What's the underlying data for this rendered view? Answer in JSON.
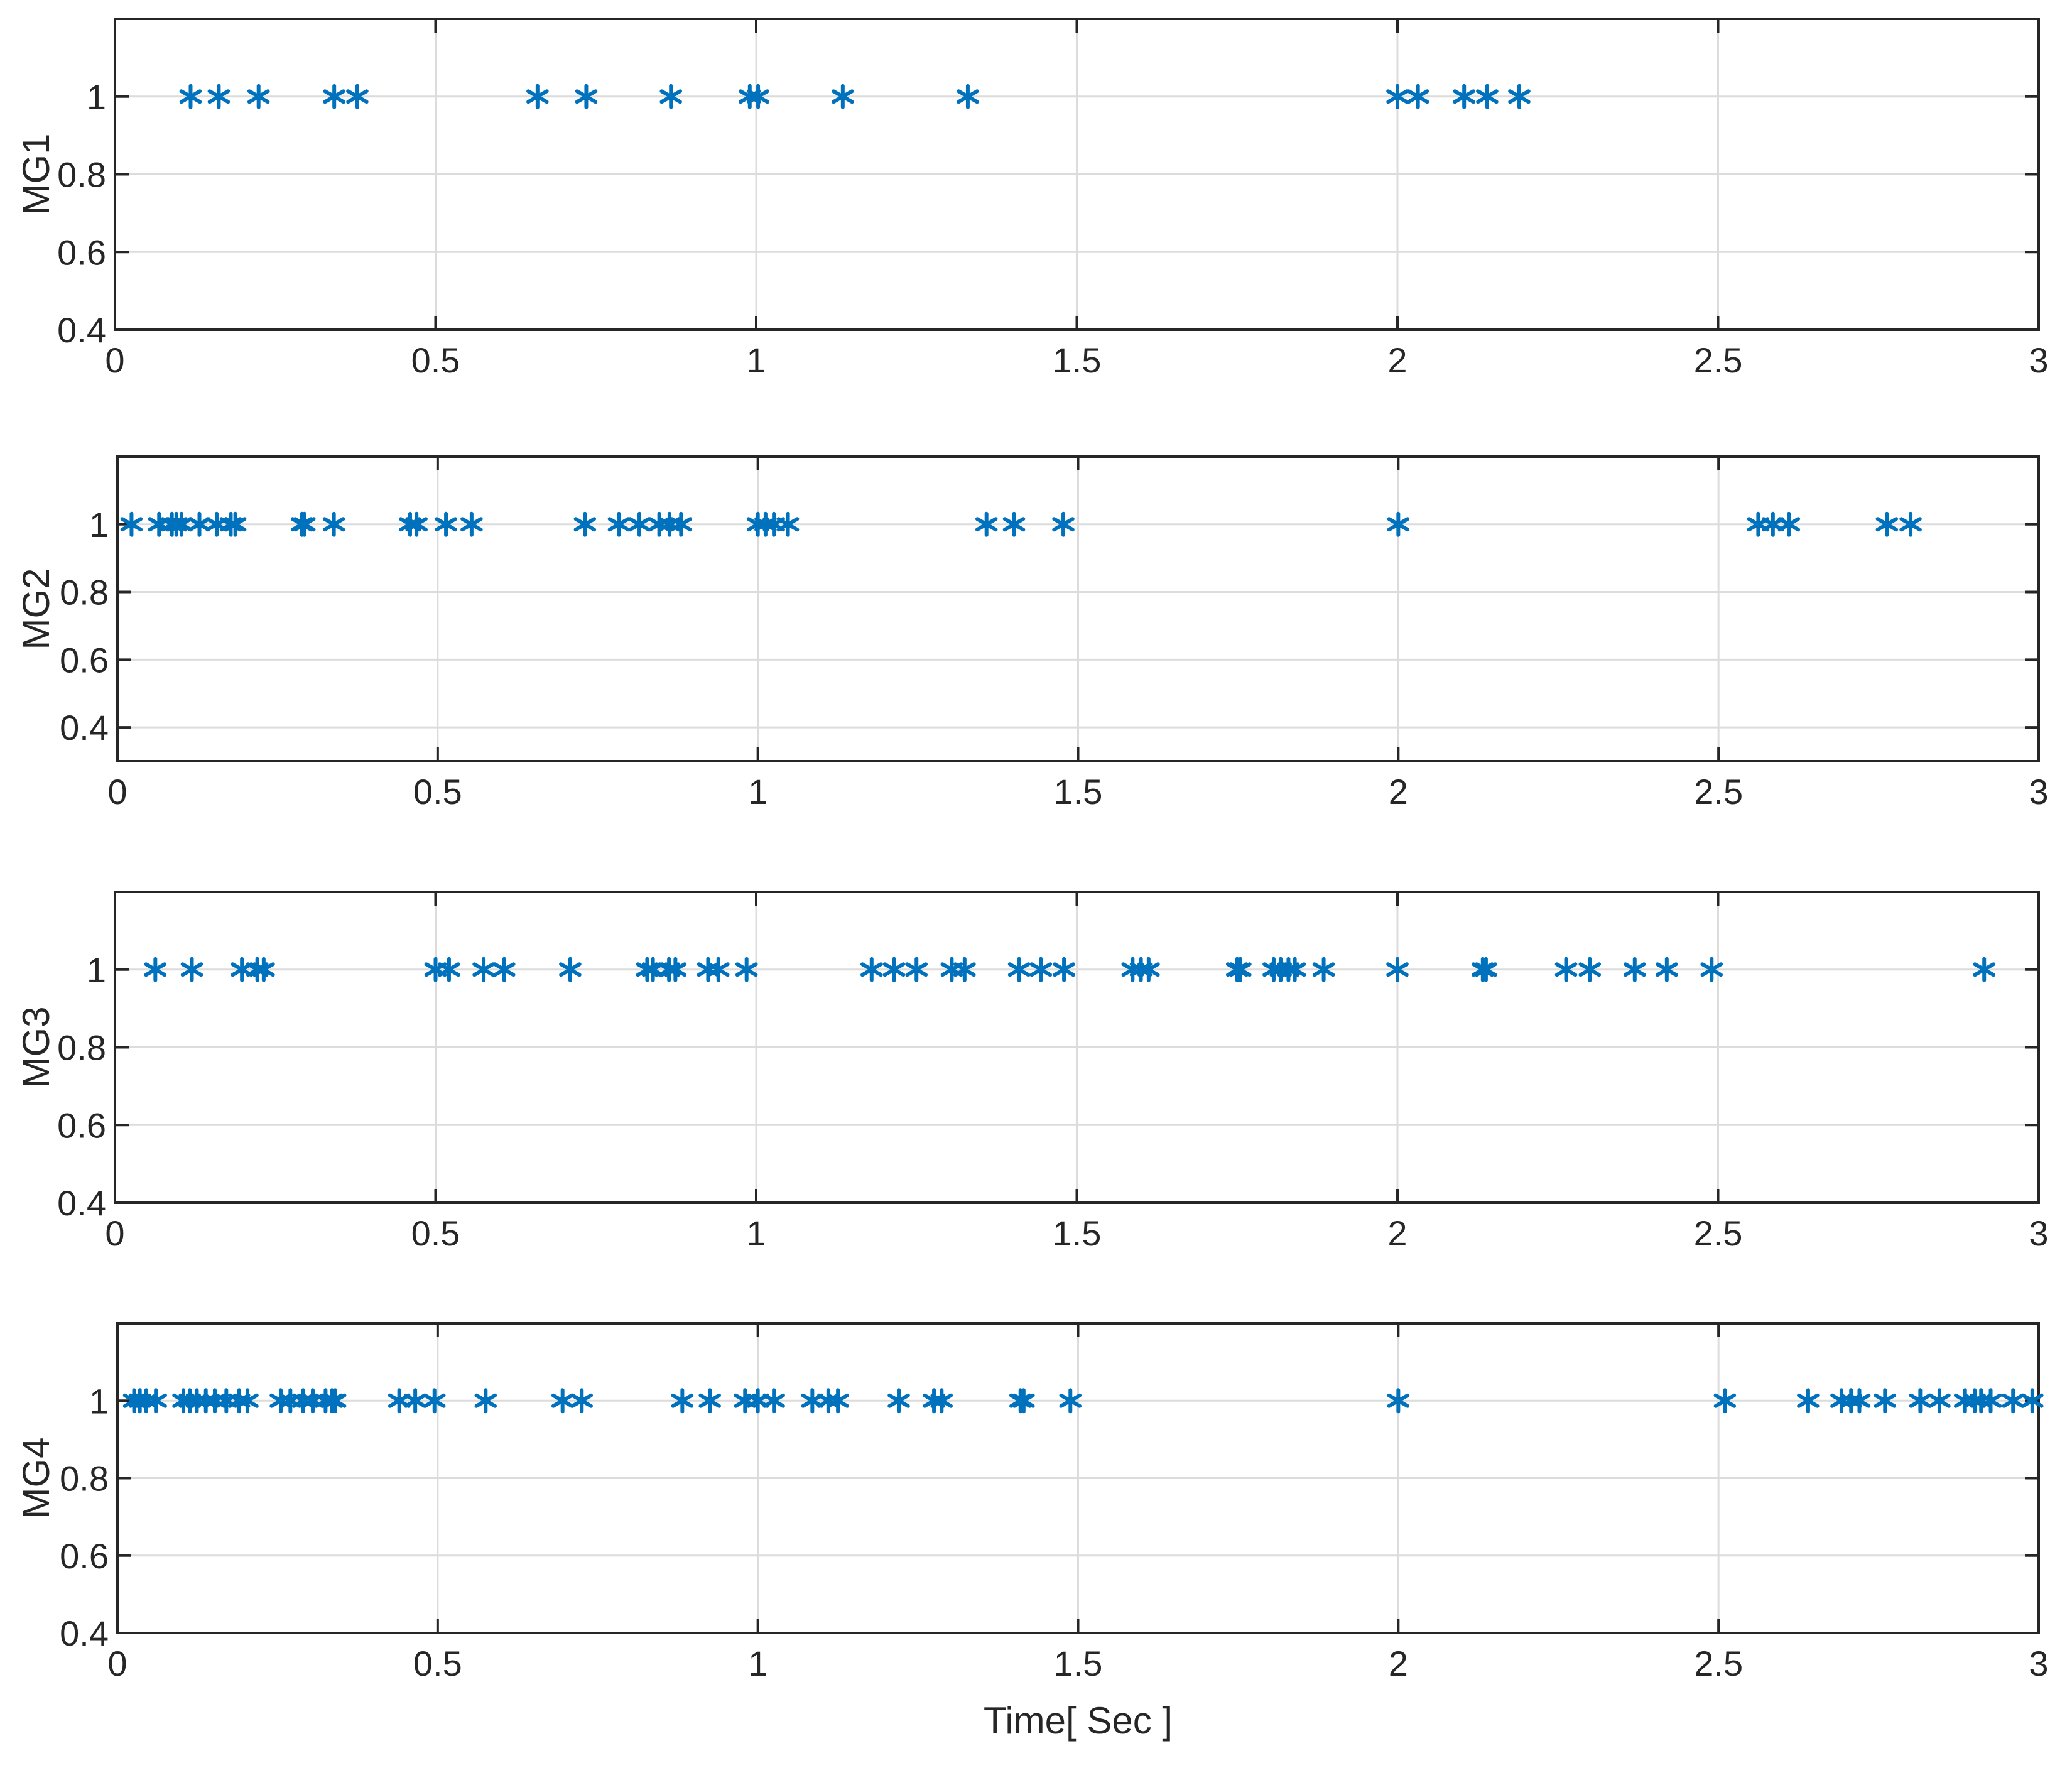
{
  "colors": {
    "marker": "#0072BD",
    "grid": "#DCDCDC",
    "axes": "#262626",
    "background": "#FFFFFF"
  },
  "chart_data": [
    {
      "type": "scatter",
      "marker": "asterisk",
      "ylabel": "MG1",
      "xlabel": "",
      "xlim": [
        0,
        3
      ],
      "ylim": [
        0.4,
        1.2
      ],
      "grid": true,
      "xticks": [
        "0",
        "0.5",
        "1",
        "1.5",
        "2",
        "2.5",
        "3"
      ],
      "yticks": [
        "0.4",
        "0.6",
        "0.8",
        "1"
      ],
      "x": [
        0.118,
        0.162,
        0.224,
        0.342,
        0.378,
        0.659,
        0.735,
        0.867,
        0.99,
        1.003,
        1.135,
        1.33,
        2.0,
        2.032,
        2.104,
        2.14,
        2.19
      ],
      "y": [
        1,
        1,
        1,
        1,
        1,
        1,
        1,
        1,
        1,
        1,
        1,
        1,
        1,
        1,
        1,
        1,
        1
      ]
    },
    {
      "type": "scatter",
      "marker": "asterisk",
      "ylabel": "MG2",
      "xlabel": "",
      "xlim": [
        0,
        3
      ],
      "ylim": [
        0.3,
        1.2
      ],
      "grid": true,
      "xticks": [
        "0",
        "0.5",
        "1",
        "1.5",
        "2",
        "2.5",
        "3"
      ],
      "yticks": [
        "0.4",
        "0.6",
        "0.8",
        "1"
      ],
      "x": [
        0.022,
        0.065,
        0.085,
        0.092,
        0.1,
        0.128,
        0.155,
        0.177,
        0.184,
        0.288,
        0.292,
        0.338,
        0.457,
        0.467,
        0.513,
        0.553,
        0.73,
        0.783,
        0.815,
        0.846,
        0.862,
        0.88,
        1.0,
        1.012,
        1.025,
        1.047,
        1.357,
        1.4,
        1.477,
        2.0,
        2.562,
        2.585,
        2.61,
        2.763,
        2.8
      ],
      "y": [
        1,
        1,
        1,
        1,
        1,
        1,
        1,
        1,
        1,
        1,
        1,
        1,
        1,
        1,
        1,
        1,
        1,
        1,
        1,
        1,
        1,
        1,
        1,
        1,
        1,
        1,
        1,
        1,
        1,
        1,
        1,
        1,
        1,
        1,
        1
      ]
    },
    {
      "type": "scatter",
      "marker": "asterisk",
      "ylabel": "MG3",
      "xlabel": "",
      "xlim": [
        0,
        3
      ],
      "ylim": [
        0.4,
        1.2
      ],
      "grid": true,
      "xticks": [
        "0",
        "0.5",
        "1",
        "1.5",
        "2",
        "2.5",
        "3"
      ],
      "yticks": [
        "0.4",
        "0.6",
        "0.8",
        "1"
      ],
      "x": [
        0.063,
        0.12,
        0.198,
        0.222,
        0.232,
        0.5,
        0.521,
        0.575,
        0.607,
        0.71,
        0.83,
        0.839,
        0.864,
        0.874,
        0.925,
        0.941,
        0.985,
        1.18,
        1.215,
        1.25,
        1.305,
        1.325,
        1.41,
        1.444,
        1.48,
        1.587,
        1.6,
        1.612,
        1.75,
        1.755,
        1.807,
        1.818,
        1.83,
        1.84,
        1.885,
        2.0,
        2.133,
        2.138,
        2.263,
        2.3,
        2.37,
        2.42,
        2.49,
        2.915
      ],
      "y": [
        1,
        1,
        1,
        1,
        1,
        1,
        1,
        1,
        1,
        1,
        1,
        1,
        1,
        1,
        1,
        1,
        1,
        1,
        1,
        1,
        1,
        1,
        1,
        1,
        1,
        1,
        1,
        1,
        1,
        1,
        1,
        1,
        1,
        1,
        1,
        1,
        1,
        1,
        1,
        1,
        1,
        1,
        1,
        1
      ]
    },
    {
      "type": "scatter",
      "marker": "asterisk",
      "ylabel": "MG4",
      "xlabel": "Time[ Sec ]",
      "xlim": [
        0,
        3
      ],
      "ylim": [
        0.4,
        1.2
      ],
      "grid": true,
      "xticks": [
        "0",
        "0.5",
        "1",
        "1.5",
        "2",
        "2.5",
        "3"
      ],
      "yticks": [
        "0.4",
        "0.6",
        "0.8",
        "1"
      ],
      "x": [
        0.026,
        0.035,
        0.045,
        0.06,
        0.103,
        0.113,
        0.124,
        0.138,
        0.152,
        0.17,
        0.19,
        0.203,
        0.255,
        0.27,
        0.29,
        0.305,
        0.325,
        0.335,
        0.34,
        0.44,
        0.465,
        0.495,
        0.575,
        0.695,
        0.725,
        0.882,
        0.925,
        0.98,
        1.0,
        1.025,
        1.085,
        1.11,
        1.125,
        1.22,
        1.275,
        1.287,
        1.41,
        1.415,
        1.488,
        2.0,
        2.51,
        2.64,
        2.692,
        2.707,
        2.72,
        2.76,
        2.815,
        2.845,
        2.885,
        2.9,
        2.91,
        2.925,
        2.96,
        2.99
      ],
      "y": [
        1,
        1,
        1,
        1,
        1,
        1,
        1,
        1,
        1,
        1,
        1,
        1,
        1,
        1,
        1,
        1,
        1,
        1,
        1,
        1,
        1,
        1,
        1,
        1,
        1,
        1,
        1,
        1,
        1,
        1,
        1,
        1,
        1,
        1,
        1,
        1,
        1,
        1,
        1,
        1,
        1,
        1,
        1,
        1,
        1,
        1,
        1,
        1,
        1,
        1,
        1,
        1,
        1,
        1
      ]
    }
  ]
}
